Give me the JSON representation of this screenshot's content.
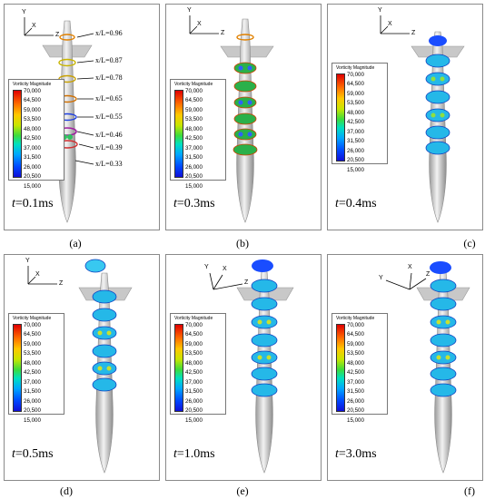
{
  "panels": [
    {
      "id": "a",
      "label": "(a)",
      "time_prefix": "t",
      "time_value": "=0.1ms"
    },
    {
      "id": "b",
      "label": "(b)",
      "time_prefix": "t",
      "time_value": "=0.3ms"
    },
    {
      "id": "c",
      "label": "(c)",
      "time_prefix": "t",
      "time_value": "=0.4ms"
    },
    {
      "id": "d",
      "label": "(d)",
      "time_prefix": "t",
      "time_value": "=0.5ms"
    },
    {
      "id": "e",
      "label": "(e)",
      "time_prefix": "t",
      "time_value": "=1.0ms"
    },
    {
      "id": "f",
      "label": "(f)",
      "time_prefix": "t",
      "time_value": "=3.0ms"
    }
  ],
  "legend": {
    "title": "Vorticity Magnitude",
    "ticks": [
      "70,000",
      "64,500",
      "59,000",
      "53,500",
      "48,000",
      "42,500",
      "37,000",
      "31,500",
      "26,000",
      "20,500",
      "15,000"
    ]
  },
  "axis_labels": {
    "x": "X",
    "y": "Y",
    "z": "Z"
  },
  "xl_labels": [
    {
      "var": "x/L",
      "val": "=0.96"
    },
    {
      "var": "x/L",
      "val": "=0.87"
    },
    {
      "var": "x/L",
      "val": "=0.78"
    },
    {
      "var": "x/L",
      "val": "=0.65"
    },
    {
      "var": "x/L",
      "val": "=0.55"
    },
    {
      "var": "x/L",
      "val": "=0.46"
    },
    {
      "var": "x/L",
      "val": "=0.39"
    },
    {
      "var": "x/L",
      "val": "=0.33"
    }
  ]
}
